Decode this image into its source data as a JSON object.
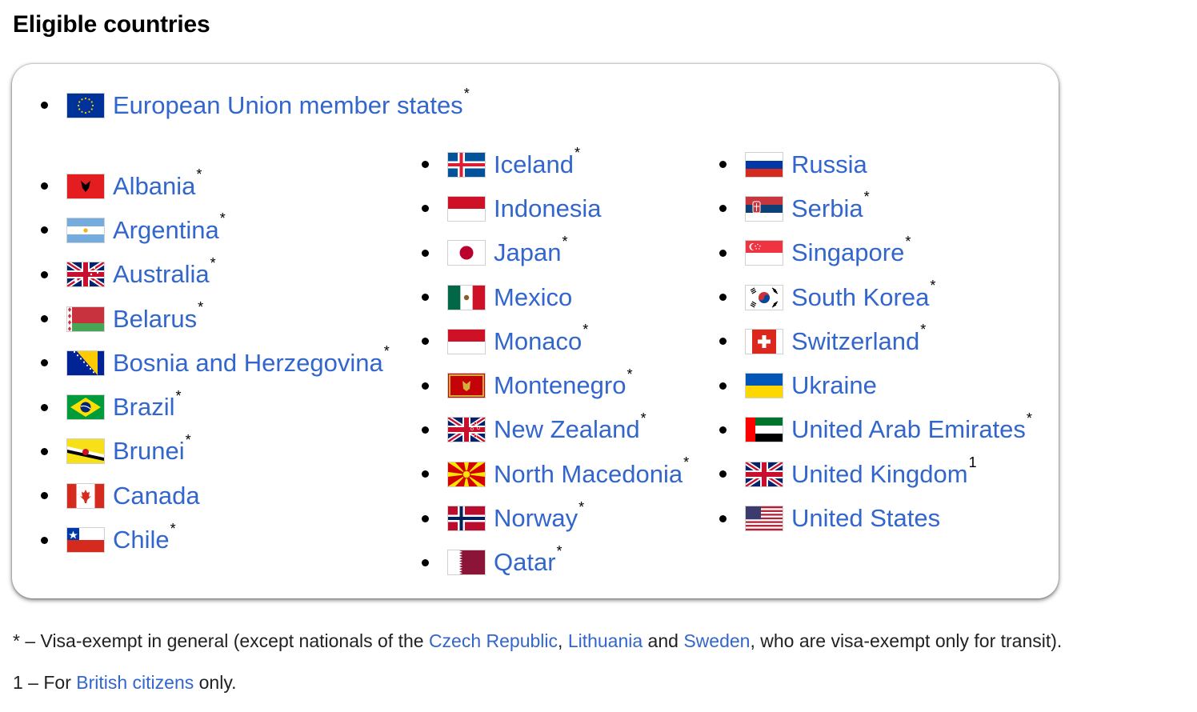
{
  "heading": "Eligible countries",
  "eu": {
    "name": "European Union member states",
    "mark": "*",
    "flag": "eu"
  },
  "columns": [
    [
      {
        "name": "Albania",
        "mark": "*",
        "flag": "albania"
      },
      {
        "name": "Argentina",
        "mark": "*",
        "flag": "argentina"
      },
      {
        "name": "Australia",
        "mark": "*",
        "flag": "australia"
      },
      {
        "name": "Belarus",
        "mark": "*",
        "flag": "belarus"
      },
      {
        "name": "Bosnia and Herzegovina",
        "mark": "*",
        "flag": "bosnia"
      },
      {
        "name": "Brazil",
        "mark": "*",
        "flag": "brazil"
      },
      {
        "name": "Brunei",
        "mark": "*",
        "flag": "brunei"
      },
      {
        "name": "Canada",
        "mark": "",
        "flag": "canada"
      },
      {
        "name": "Chile",
        "mark": "*",
        "flag": "chile"
      }
    ],
    [
      {
        "name": "Iceland",
        "mark": "*",
        "flag": "iceland"
      },
      {
        "name": "Indonesia",
        "mark": "",
        "flag": "indonesia"
      },
      {
        "name": "Japan",
        "mark": "*",
        "flag": "japan"
      },
      {
        "name": "Mexico",
        "mark": "",
        "flag": "mexico"
      },
      {
        "name": "Monaco",
        "mark": "*",
        "flag": "monaco"
      },
      {
        "name": "Montenegro",
        "mark": "*",
        "flag": "montenegro"
      },
      {
        "name": "New Zealand",
        "mark": "*",
        "flag": "newzealand"
      },
      {
        "name": "North Macedonia",
        "mark": "*",
        "flag": "macedonia"
      },
      {
        "name": "Norway",
        "mark": "*",
        "flag": "norway"
      },
      {
        "name": "Qatar",
        "mark": "*",
        "flag": "qatar"
      }
    ],
    [
      {
        "name": "Russia",
        "mark": "",
        "flag": "russia"
      },
      {
        "name": "Serbia",
        "mark": "*",
        "flag": "serbia"
      },
      {
        "name": "Singapore",
        "mark": "*",
        "flag": "singapore"
      },
      {
        "name": "South Korea",
        "mark": "*",
        "flag": "southkorea"
      },
      {
        "name": "Switzerland",
        "mark": "*",
        "flag": "switzerland"
      },
      {
        "name": "Ukraine",
        "mark": "",
        "flag": "ukraine"
      },
      {
        "name": "United Arab Emirates",
        "mark": "*",
        "flag": "uae"
      },
      {
        "name": "United Kingdom",
        "mark": "1",
        "flag": "uk"
      },
      {
        "name": "United States",
        "mark": "",
        "flag": "usa"
      }
    ]
  ],
  "footnotes": {
    "star": {
      "prefix": "* – Visa-exempt in general (except nationals of the ",
      "link1": "Czech Republic",
      "sep1": ", ",
      "link2": "Lithuania",
      "sep2": " and ",
      "link3": "Sweden",
      "suffix": ", who are visa-exempt only for transit)."
    },
    "one": {
      "prefix": "1 – For ",
      "link": "British citizens",
      "suffix": " only."
    }
  },
  "colors": {
    "link": "#3366cc",
    "text": "#202122"
  }
}
